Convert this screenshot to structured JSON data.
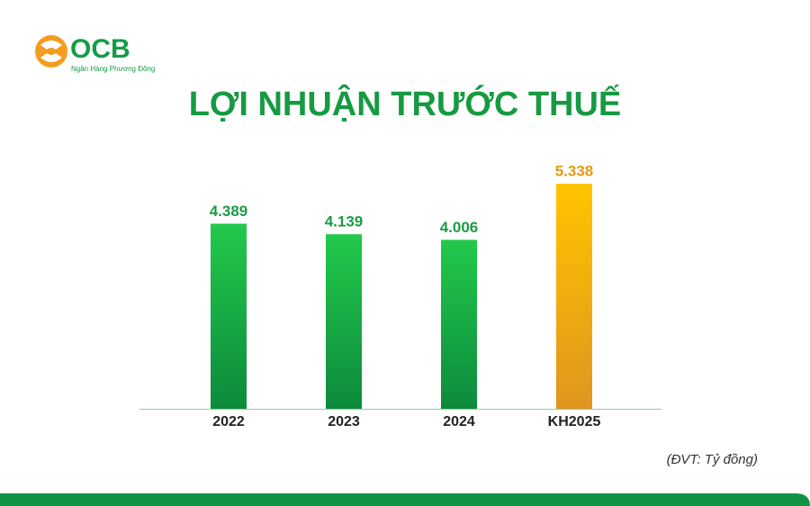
{
  "logo": {
    "name": "OCB",
    "tagline": "Ngân Hàng Phương Đông"
  },
  "chart_data": {
    "type": "bar",
    "title": "LỢI NHUẬN TRƯỚC THUẾ",
    "categories": [
      "2022",
      "2023",
      "2024",
      "KH2025"
    ],
    "values": [
      4389,
      4139,
      4006,
      5338
    ],
    "value_labels": [
      "4.389",
      "4.139",
      "4.006",
      "5.338"
    ],
    "colors": [
      "#22c94b",
      "#22c94b",
      "#22c94b",
      "#ffc400"
    ],
    "colors_bottom": [
      "#0d8a3c",
      "#0d8a3c",
      "#0d8a3c",
      "#df961f"
    ],
    "note": "(ĐVT: Tỷ đồng)"
  }
}
